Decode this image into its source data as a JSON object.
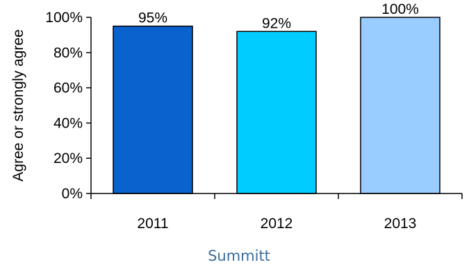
{
  "chart_data": {
    "type": "bar",
    "categories": [
      "2011",
      "2012",
      "2013"
    ],
    "values": [
      95,
      92,
      100
    ],
    "data_labels": [
      "95%",
      "92%",
      "100%"
    ],
    "colors": [
      "#0a62cf",
      "#00ccff",
      "#99ccff"
    ],
    "ylabel": "Agree or strongly agree",
    "xlabel": "Summitt",
    "ylim": [
      0,
      100
    ],
    "yticks": [
      0,
      20,
      40,
      60,
      80,
      100
    ],
    "ytick_labels": [
      "0%",
      "20%",
      "40%",
      "60%",
      "80%",
      "100%"
    ],
    "grid": false,
    "legend": "none"
  }
}
